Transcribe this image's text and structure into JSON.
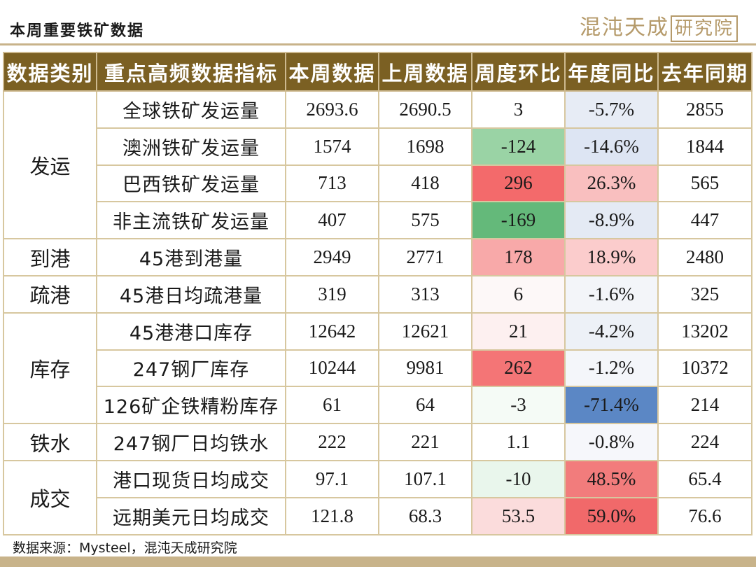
{
  "header": {
    "title": "本周重要铁矿数据",
    "logo_text": "混沌天成",
    "logo_box_text": "研究院"
  },
  "chart_data": {
    "type": "table",
    "columns": [
      "数据类别",
      "重点高频数据指标",
      "本周数据",
      "上周数据",
      "周度环比",
      "年度同比",
      "去年同期"
    ],
    "groups": [
      {
        "category": "发运",
        "rows": [
          {
            "indicator": "全球铁矿发运量",
            "this_week": "2693.6",
            "last_week": "2690.5",
            "wow": "3",
            "yoy": "-5.7%",
            "last_year": "2855",
            "wow_color": "#ffffff",
            "yoy_color": "#e7ecf5"
          },
          {
            "indicator": "澳洲铁矿发运量",
            "this_week": "1574",
            "last_week": "1698",
            "wow": "-124",
            "yoy": "-14.6%",
            "last_year": "1844",
            "wow_color": "#9ad3a5",
            "yoy_color": "#dde5f3"
          },
          {
            "indicator": "巴西铁矿发运量",
            "this_week": "713",
            "last_week": "418",
            "wow": "296",
            "yoy": "26.3%",
            "last_year": "565",
            "wow_color": "#f36a6b",
            "yoy_color": "#f9bfbf"
          },
          {
            "indicator": "非主流铁矿发运量",
            "this_week": "407",
            "last_week": "575",
            "wow": "-169",
            "yoy": "-8.9%",
            "last_year": "447",
            "wow_color": "#64b97a",
            "yoy_color": "#e4eaf4"
          }
        ]
      },
      {
        "category": "到港",
        "rows": [
          {
            "indicator": "45港到港量",
            "this_week": "2949",
            "last_week": "2771",
            "wow": "178",
            "yoy": "18.9%",
            "last_year": "2480",
            "wow_color": "#f8a9a9",
            "yoy_color": "#fbcccc"
          }
        ]
      },
      {
        "category": "疏港",
        "rows": [
          {
            "indicator": "45港日均疏港量",
            "this_week": "319",
            "last_week": "313",
            "wow": "6",
            "yoy": "-1.6%",
            "last_year": "325",
            "wow_color": "#fdf8f8",
            "yoy_color": "#f3f5f9"
          }
        ]
      },
      {
        "category": "库存",
        "rows": [
          {
            "indicator": "45港港口库存",
            "this_week": "12642",
            "last_week": "12621",
            "wow": "21",
            "yoy": "-4.2%",
            "last_year": "13202",
            "wow_color": "#fdf0f0",
            "yoy_color": "#edf1f7"
          },
          {
            "indicator": "247钢厂库存",
            "this_week": "10244",
            "last_week": "9981",
            "wow": "262",
            "yoy": "-1.2%",
            "last_year": "10372",
            "wow_color": "#f47576",
            "yoy_color": "#f4f6fa"
          },
          {
            "indicator": "126矿企铁精粉库存",
            "this_week": "61",
            "last_week": "64",
            "wow": "-3",
            "yoy": "-71.4%",
            "last_year": "214",
            "wow_color": "#f5fbf6",
            "yoy_color": "#5b87c5"
          }
        ]
      },
      {
        "category": "铁水",
        "rows": [
          {
            "indicator": "247钢厂日均铁水",
            "this_week": "222",
            "last_week": "221",
            "wow": "1.1",
            "yoy": "-0.8%",
            "last_year": "224",
            "wow_color": "#ffffff",
            "yoy_color": "#f6f7fb"
          }
        ]
      },
      {
        "category": "成交",
        "rows": [
          {
            "indicator": "港口现货日均成交",
            "this_week": "97.1",
            "last_week": "107.1",
            "wow": "-10",
            "yoy": "48.5%",
            "last_year": "65.4",
            "wow_color": "#e9f6ec",
            "yoy_color": "#f27c7c"
          },
          {
            "indicator": "远期美元日均成交",
            "this_week": "121.8",
            "last_week": "68.3",
            "wow": "53.5",
            "yoy": "59.0%",
            "last_year": "76.6",
            "wow_color": "#fbdcdc",
            "yoy_color": "#f1696a"
          }
        ]
      }
    ]
  },
  "footer": {
    "source": "数据来源：Mysteel，混沌天成研究院"
  }
}
